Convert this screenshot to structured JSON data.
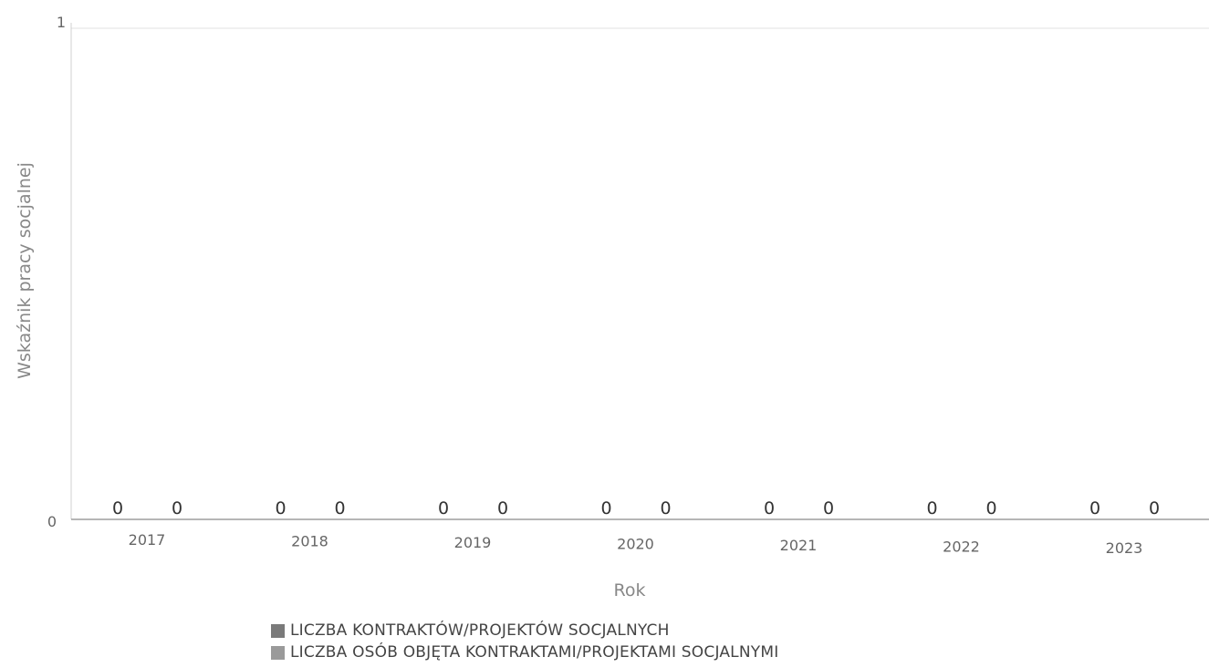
{
  "chart_data": {
    "type": "bar",
    "title": "",
    "xlabel": "Rok",
    "ylabel": "Wskaźnik pracy socjalnej",
    "categories": [
      "2017",
      "2018",
      "2019",
      "2020",
      "2021",
      "2022",
      "2023"
    ],
    "series": [
      {
        "name": "LICZBA KONTRAKTÓW/PROJEKTÓW SOCJALNYCH",
        "values": [
          0,
          0,
          0,
          0,
          0,
          0,
          0
        ],
        "color": "#7a7a7a"
      },
      {
        "name": "LICZBA OSÓB OBJĘTA KONTRAKTAMI/PROJEKTAMI SOCJALNYMI",
        "values": [
          0,
          0,
          0,
          0,
          0,
          0,
          0
        ],
        "color": "#9a9a9a"
      }
    ],
    "ylim": [
      0,
      1
    ],
    "yticks": [
      "0",
      "1"
    ],
    "grid": true,
    "legend": "bottom"
  }
}
